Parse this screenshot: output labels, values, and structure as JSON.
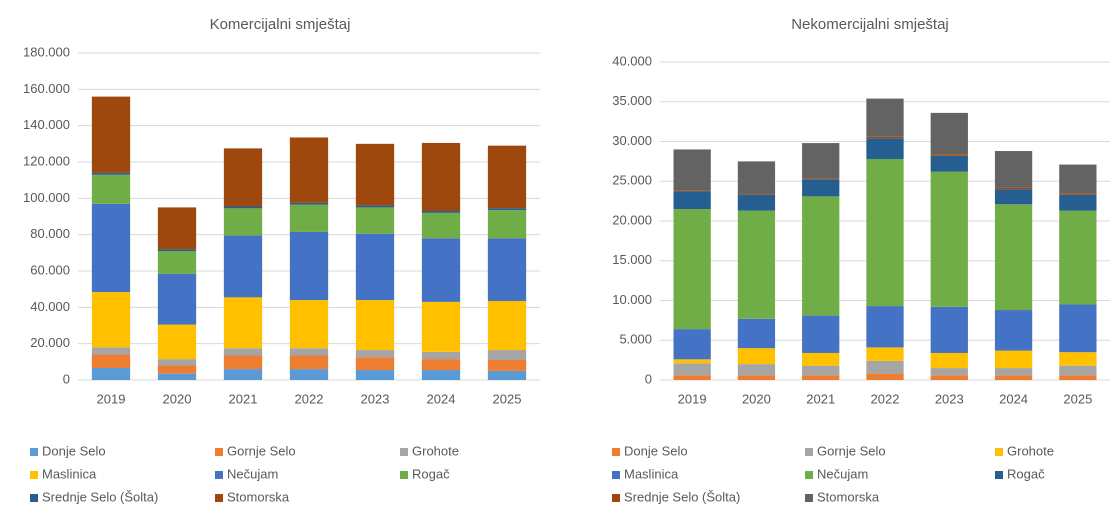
{
  "chart_data": [
    {
      "type": "stacked_bar",
      "title": "Komercijalni smještaj",
      "categories": [
        "2019",
        "2020",
        "2021",
        "2022",
        "2023",
        "2024",
        "2025"
      ],
      "ylim": [
        0,
        180000
      ],
      "yticks": [
        0,
        {
          "value": 20000,
          "label": "20.000"
        },
        {
          "value": 40000,
          "label": "40.000"
        },
        {
          "value": 60000,
          "label": "60.000"
        },
        {
          "value": 80000,
          "label": "80.000"
        },
        {
          "value": 100000,
          "label": "100.000"
        },
        {
          "value": 120000,
          "label": "120.000"
        },
        {
          "value": 140000,
          "label": "140.000"
        },
        {
          "value": 160000,
          "label": "160.000"
        },
        {
          "value": 180000,
          "label": "180.000"
        }
      ],
      "grid": true,
      "series": [
        {
          "name": "Donje Selo",
          "color": "#5b9bd5",
          "values": [
            6600,
            3500,
            6000,
            6000,
            5500,
            5500,
            5000
          ]
        },
        {
          "name": "Gornje Selo",
          "color": "#ed7d31",
          "values": [
            7400,
            4500,
            7500,
            7500,
            7000,
            6000,
            6000
          ]
        },
        {
          "name": "Grohote",
          "color": "#a5a5a5",
          "values": [
            4000,
            3500,
            4000,
            4000,
            4000,
            4000,
            5500
          ]
        },
        {
          "name": "Maslinica",
          "color": "#ffc000",
          "values": [
            30400,
            19000,
            28000,
            26500,
            27500,
            27500,
            27000
          ]
        },
        {
          "name": "Nečujam",
          "color": "#4472c4",
          "values": [
            48600,
            28000,
            34000,
            37500,
            36500,
            35000,
            34500
          ]
        },
        {
          "name": "Rogač",
          "color": "#70ad47",
          "values": [
            16000,
            12500,
            15000,
            15000,
            14500,
            14000,
            15500
          ]
        },
        {
          "name": "Srednje Selo (Šolta)",
          "color": "#255e91",
          "values": [
            1000,
            1000,
            1000,
            1000,
            1000,
            1000,
            1000
          ]
        },
        {
          "name": "Stomorska",
          "color": "#9e480e",
          "values": [
            42000,
            23000,
            32000,
            36000,
            34000,
            37500,
            34500
          ]
        }
      ]
    },
    {
      "type": "stacked_bar",
      "title": "Nekomercijalni smještaj",
      "categories": [
        "2019",
        "2020",
        "2021",
        "2022",
        "2023",
        "2024",
        "2025"
      ],
      "ylim": [
        0,
        40000
      ],
      "yticks": [
        0,
        {
          "value": 5000,
          "label": "5.000"
        },
        {
          "value": 10000,
          "label": "10.000"
        },
        {
          "value": 15000,
          "label": "15.000"
        },
        {
          "value": 20000,
          "label": "20.000"
        },
        {
          "value": 25000,
          "label": "25.000"
        },
        {
          "value": 30000,
          "label": "30.000"
        },
        {
          "value": 35000,
          "label": "35.000"
        },
        {
          "value": 40000,
          "label": "40.000"
        }
      ],
      "grid": true,
      "series": [
        {
          "name": "Donje Selo",
          "color": "#ed7d31",
          "values": [
            600,
            600,
            600,
            800,
            600,
            600,
            600
          ]
        },
        {
          "name": "Gornje Selo",
          "color": "#a5a5a5",
          "values": [
            1500,
            1400,
            1200,
            1600,
            900,
            900,
            1200
          ]
        },
        {
          "name": "Grohote",
          "color": "#ffc000",
          "values": [
            500,
            2000,
            1600,
            1700,
            1900,
            2200,
            1700
          ]
        },
        {
          "name": "Maslinica",
          "color": "#4472c4",
          "values": [
            3800,
            3700,
            4700,
            5200,
            5800,
            5100,
            6000
          ]
        },
        {
          "name": "Nečujam",
          "color": "#70ad47",
          "values": [
            15100,
            13600,
            15000,
            18500,
            17000,
            13300,
            11800
          ]
        },
        {
          "name": "Rogač",
          "color": "#255e91",
          "values": [
            2200,
            2000,
            2100,
            2600,
            2000,
            1900,
            2000
          ]
        },
        {
          "name": "Srednje Selo (Šolta)",
          "color": "#9e480e",
          "values": [
            100,
            100,
            100,
            200,
            200,
            200,
            200
          ]
        },
        {
          "name": "Stomorska",
          "color": "#636363",
          "values": [
            5200,
            4100,
            4500,
            4800,
            5200,
            4600,
            3600
          ]
        }
      ]
    }
  ]
}
